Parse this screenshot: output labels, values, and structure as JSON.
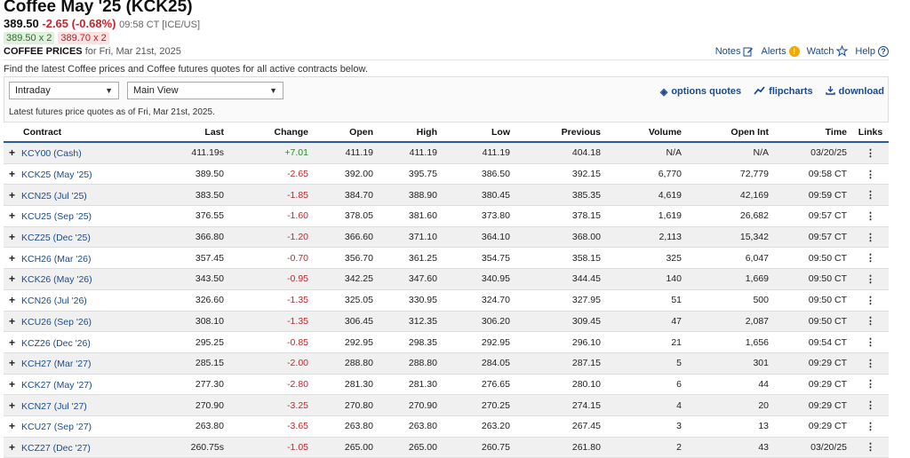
{
  "header": {
    "title": "Coffee May '25 (KCK25)",
    "last": "389.50",
    "change": "-2.65 (-0.68%)",
    "timestamp": "09:58 CT [ICE/US]",
    "bid": "389.50 x 2",
    "ask": "389.70 x 2",
    "section_title": "COFFEE PRICES",
    "section_date": "for Fri, Mar 21st, 2025"
  },
  "top_links": {
    "notes": "Notes",
    "alerts": "Alerts",
    "watch": "Watch",
    "help": "Help"
  },
  "description": "Find the latest Coffee prices and Coffee futures quotes for all active contracts below.",
  "controls": {
    "period": "Intraday",
    "view": "Main View",
    "options_label": "options quotes",
    "flip_label": "flipcharts",
    "download_label": "download",
    "as_of": "Latest futures price quotes as of Fri, Mar 21st, 2025."
  },
  "columns": [
    "Contract",
    "Last",
    "Change",
    "Open",
    "High",
    "Low",
    "Previous",
    "Volume",
    "Open Int",
    "Time",
    "Links"
  ],
  "rows": [
    {
      "contract": "KCY00 (Cash)",
      "last": "411.19s",
      "change": "+7.01",
      "open": "411.19",
      "high": "411.19",
      "low": "411.19",
      "previous": "404.18",
      "volume": "N/A",
      "oi": "N/A",
      "time": "03/20/25"
    },
    {
      "contract": "KCK25 (May '25)",
      "last": "389.50",
      "change": "-2.65",
      "open": "392.00",
      "high": "395.75",
      "low": "386.50",
      "previous": "392.15",
      "volume": "6,770",
      "oi": "72,779",
      "time": "09:58 CT"
    },
    {
      "contract": "KCN25 (Jul '25)",
      "last": "383.50",
      "change": "-1.85",
      "open": "384.70",
      "high": "388.90",
      "low": "380.45",
      "previous": "385.35",
      "volume": "4,619",
      "oi": "42,169",
      "time": "09:59 CT"
    },
    {
      "contract": "KCU25 (Sep '25)",
      "last": "376.55",
      "change": "-1.60",
      "open": "378.05",
      "high": "381.60",
      "low": "373.80",
      "previous": "378.15",
      "volume": "1,619",
      "oi": "26,682",
      "time": "09:57 CT"
    },
    {
      "contract": "KCZ25 (Dec '25)",
      "last": "366.80",
      "change": "-1.20",
      "open": "366.60",
      "high": "371.10",
      "low": "364.10",
      "previous": "368.00",
      "volume": "2,113",
      "oi": "15,342",
      "time": "09:57 CT"
    },
    {
      "contract": "KCH26 (Mar '26)",
      "last": "357.45",
      "change": "-0.70",
      "open": "356.70",
      "high": "361.25",
      "low": "354.75",
      "previous": "358.15",
      "volume": "325",
      "oi": "6,047",
      "time": "09:50 CT"
    },
    {
      "contract": "KCK26 (May '26)",
      "last": "343.50",
      "change": "-0.95",
      "open": "342.25",
      "high": "347.60",
      "low": "340.95",
      "previous": "344.45",
      "volume": "140",
      "oi": "1,669",
      "time": "09:50 CT"
    },
    {
      "contract": "KCN26 (Jul '26)",
      "last": "326.60",
      "change": "-1.35",
      "open": "325.05",
      "high": "330.95",
      "low": "324.70",
      "previous": "327.95",
      "volume": "51",
      "oi": "500",
      "time": "09:50 CT"
    },
    {
      "contract": "KCU26 (Sep '26)",
      "last": "308.10",
      "change": "-1.35",
      "open": "306.45",
      "high": "312.35",
      "low": "306.20",
      "previous": "309.45",
      "volume": "47",
      "oi": "2,087",
      "time": "09:50 CT"
    },
    {
      "contract": "KCZ26 (Dec '26)",
      "last": "295.25",
      "change": "-0.85",
      "open": "292.95",
      "high": "298.35",
      "low": "292.95",
      "previous": "296.10",
      "volume": "21",
      "oi": "1,656",
      "time": "09:54 CT"
    },
    {
      "contract": "KCH27 (Mar '27)",
      "last": "285.15",
      "change": "-2.00",
      "open": "288.80",
      "high": "288.80",
      "low": "284.05",
      "previous": "287.15",
      "volume": "5",
      "oi": "301",
      "time": "09:29 CT"
    },
    {
      "contract": "KCK27 (May '27)",
      "last": "277.30",
      "change": "-2.80",
      "open": "281.30",
      "high": "281.30",
      "low": "276.65",
      "previous": "280.10",
      "volume": "6",
      "oi": "44",
      "time": "09:29 CT"
    },
    {
      "contract": "KCN27 (Jul '27)",
      "last": "270.90",
      "change": "-3.25",
      "open": "270.80",
      "high": "270.90",
      "low": "270.25",
      "previous": "274.15",
      "volume": "4",
      "oi": "20",
      "time": "09:29 CT"
    },
    {
      "contract": "KCU27 (Sep '27)",
      "last": "263.80",
      "change": "-3.65",
      "open": "263.80",
      "high": "263.80",
      "low": "263.20",
      "previous": "267.45",
      "volume": "3",
      "oi": "13",
      "time": "09:29 CT"
    },
    {
      "contract": "KCZ27 (Dec '27)",
      "last": "260.75s",
      "change": "-1.05",
      "open": "265.00",
      "high": "265.00",
      "low": "260.75",
      "previous": "261.80",
      "volume": "2",
      "oi": "43",
      "time": "03/20/25"
    }
  ],
  "colors": {
    "link": "#1a4b8c",
    "negative": "#c1272d",
    "positive": "#2a8a2a",
    "header_rule": "#2c5aa0"
  }
}
